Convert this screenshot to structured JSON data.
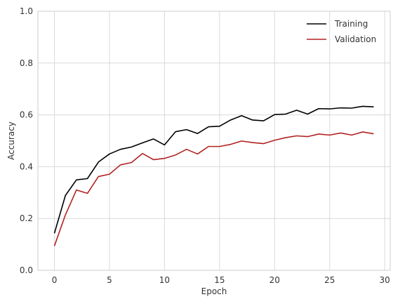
{
  "chart_data": {
    "type": "line",
    "xlabel": "Epoch",
    "ylabel": "Accuracy",
    "xlim": [
      -1.5,
      30.5
    ],
    "ylim": [
      0,
      1
    ],
    "xticks": [
      0,
      5,
      10,
      15,
      20,
      25,
      30
    ],
    "yticks": [
      0.0,
      0.2,
      0.4,
      0.6,
      0.8,
      1.0
    ],
    "xtick_labels": [
      "0",
      "5",
      "10",
      "15",
      "20",
      "25",
      "30"
    ],
    "ytick_labels": [
      "0.0",
      "0.2",
      "0.4",
      "0.6",
      "0.8",
      "1.0"
    ],
    "grid": true,
    "legend_position": "top-right",
    "x": [
      0,
      1,
      2,
      3,
      4,
      5,
      6,
      7,
      8,
      9,
      10,
      11,
      12,
      13,
      14,
      15,
      16,
      17,
      18,
      19,
      20,
      21,
      22,
      23,
      24,
      25,
      26,
      27,
      28,
      29
    ],
    "series": [
      {
        "name": "Training",
        "color": "#000000",
        "values": [
          0.143,
          0.289,
          0.349,
          0.354,
          0.418,
          0.449,
          0.467,
          0.476,
          0.492,
          0.507,
          0.484,
          0.535,
          0.543,
          0.528,
          0.554,
          0.556,
          0.58,
          0.597,
          0.58,
          0.577,
          0.601,
          0.603,
          0.618,
          0.603,
          0.624,
          0.623,
          0.627,
          0.626,
          0.633,
          0.631
        ]
      },
      {
        "name": "Validation",
        "color": "#b22222",
        "values": [
          0.094,
          0.214,
          0.31,
          0.297,
          0.362,
          0.371,
          0.407,
          0.416,
          0.451,
          0.427,
          0.432,
          0.445,
          0.467,
          0.449,
          0.478,
          0.478,
          0.486,
          0.499,
          0.493,
          0.489,
          0.502,
          0.512,
          0.519,
          0.516,
          0.526,
          0.522,
          0.53,
          0.522,
          0.534,
          0.527
        ]
      }
    ]
  }
}
